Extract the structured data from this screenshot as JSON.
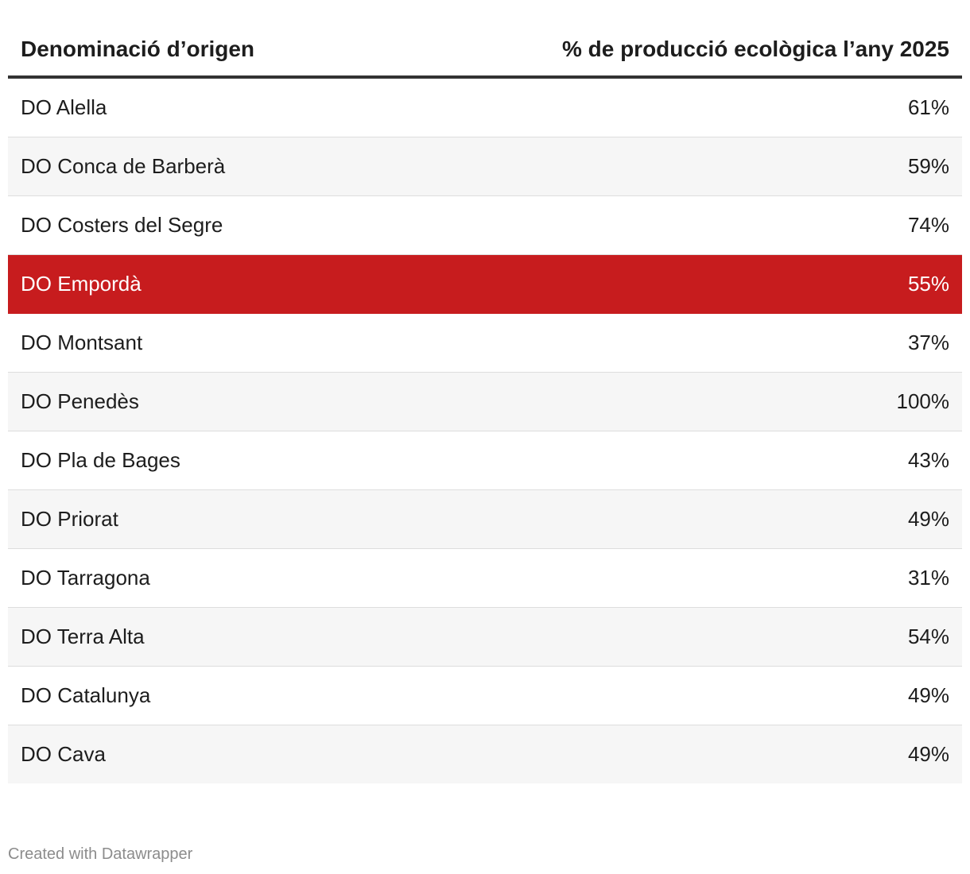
{
  "chart_data": {
    "type": "table",
    "columns": [
      "Denominació d’origen",
      "% de producció ecològica l’any 2025"
    ],
    "rows": [
      {
        "name": "DO Alella",
        "value": "61%"
      },
      {
        "name": "DO Conca de Barberà",
        "value": "59%"
      },
      {
        "name": "DO Costers del Segre",
        "value": "74%"
      },
      {
        "name": "DO Empordà",
        "value": "55%",
        "highlighted": true
      },
      {
        "name": "DO Montsant",
        "value": "37%"
      },
      {
        "name": "DO Penedès",
        "value": "100%"
      },
      {
        "name": "DO Pla de Bages",
        "value": "43%"
      },
      {
        "name": "DO Priorat",
        "value": "49%"
      },
      {
        "name": "DO Tarragona",
        "value": "31%"
      },
      {
        "name": "DO Terra Alta",
        "value": "54%"
      },
      {
        "name": "DO Catalunya",
        "value": "49%"
      },
      {
        "name": "DO Cava",
        "value": "49%"
      }
    ],
    "highlight_color": "#c71c1e",
    "stripe_color": "#f6f6f6"
  },
  "footer": {
    "credit": "Created with Datawrapper"
  }
}
